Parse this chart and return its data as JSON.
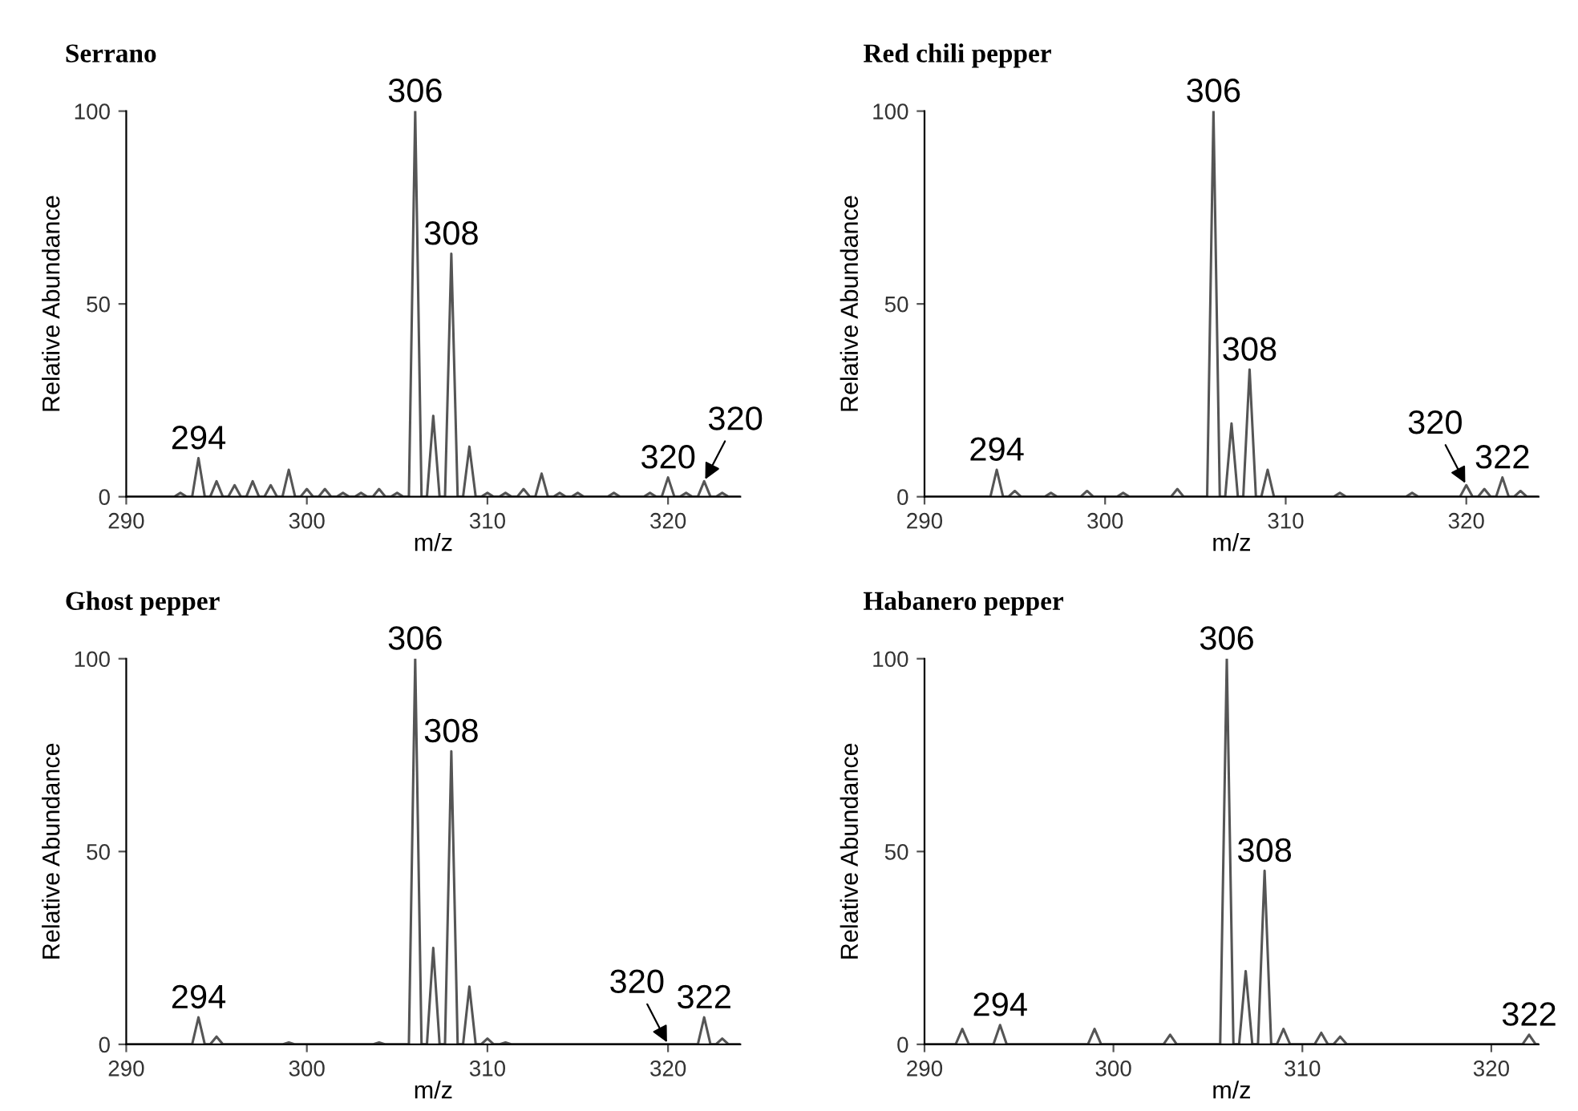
{
  "chart_data": [
    {
      "type": "line",
      "title": "Serrano",
      "xlabel": "m/z",
      "ylabel": "Relative Abundance",
      "xlim": [
        290,
        324
      ],
      "xticks": [
        290,
        300,
        310,
        320
      ],
      "ylim": [
        0,
        100
      ],
      "yticks": [
        0,
        50,
        100
      ],
      "grid": false,
      "legend": false,
      "series": [
        {
          "color": "#555555",
          "x": [
            290,
            292.65,
            293,
            293.35,
            293.65,
            294,
            294.35,
            294.65,
            295,
            295.35,
            295.65,
            296,
            296.35,
            296.65,
            297,
            297.35,
            297.65,
            298,
            298.35,
            298.65,
            299,
            299.35,
            299.65,
            300,
            300.35,
            300.65,
            301,
            301.35,
            301.65,
            302,
            302.35,
            302.65,
            303,
            303.35,
            303.65,
            304,
            304.35,
            304.65,
            305,
            305.35,
            305.65,
            306,
            306.35,
            306.65,
            307,
            307.35,
            307.65,
            308,
            308.35,
            308.65,
            309,
            309.35,
            309.65,
            310,
            310.35,
            310.65,
            311,
            311.35,
            311.65,
            312,
            312.35,
            312.65,
            313,
            313.35,
            313.65,
            314,
            314.35,
            314.65,
            315,
            315.35,
            316.65,
            317,
            317.35,
            318.65,
            319,
            319.35,
            319.65,
            320,
            320.35,
            320.65,
            321,
            321.35,
            321.65,
            322,
            322.35,
            322.65,
            323,
            323.35,
            324
          ],
          "values": [
            0,
            0,
            1,
            0,
            0,
            10,
            0,
            0,
            4,
            0,
            0,
            3,
            0,
            0,
            4,
            0,
            0,
            3,
            0,
            0,
            7,
            0,
            0,
            2,
            0,
            0,
            2,
            0,
            0,
            1,
            0,
            0,
            1,
            0,
            0,
            2,
            0,
            0,
            1,
            0,
            0,
            100,
            0,
            0,
            21,
            0,
            0,
            63,
            0,
            0,
            13,
            0,
            0,
            1,
            0,
            0,
            1,
            0,
            0,
            2,
            0,
            0,
            6,
            0,
            0,
            1,
            0,
            0,
            1,
            0,
            0,
            1,
            0,
            0,
            1,
            0,
            0,
            5,
            0,
            0,
            1,
            0,
            0,
            4,
            0,
            0,
            1,
            0,
            0
          ]
        }
      ],
      "annotations": [
        {
          "text": "294",
          "x": 294,
          "y": 10
        },
        {
          "text": "306",
          "x": 306,
          "y": 100
        },
        {
          "text": "308",
          "x": 308,
          "y": 63
        },
        {
          "text": "320",
          "x": 320,
          "y": 5
        },
        {
          "text": "320",
          "x": 322,
          "y": 4
        }
      ]
    },
    {
      "type": "line",
      "title": "Red chili pepper",
      "xlabel": "m/z",
      "ylabel": "Relative Abundance",
      "xlim": [
        290,
        324
      ],
      "xticks": [
        290,
        300,
        310,
        320
      ],
      "ylim": [
        0,
        100
      ],
      "yticks": [
        0,
        50,
        100
      ],
      "grid": false,
      "legend": false,
      "series": [
        {
          "color": "#555555",
          "x": [
            290,
            293.65,
            294,
            294.35,
            294.65,
            295,
            295.35,
            296.65,
            297,
            297.35,
            298.65,
            299,
            299.35,
            300.65,
            301,
            301.35,
            303.65,
            304,
            304.35,
            305.65,
            306,
            306.35,
            306.65,
            307,
            307.35,
            307.65,
            308,
            308.35,
            308.65,
            309,
            309.35,
            312.65,
            313,
            313.35,
            316.65,
            317,
            317.35,
            319.65,
            320,
            320.35,
            320.65,
            321,
            321.35,
            321.65,
            322,
            322.35,
            322.65,
            323,
            323.35,
            324
          ],
          "values": [
            0,
            0,
            7,
            0,
            0,
            1.5,
            0,
            0,
            1,
            0,
            0,
            1.5,
            0,
            0,
            1,
            0,
            0,
            2,
            0,
            0,
            100,
            0,
            0,
            19,
            0,
            0,
            33,
            0,
            0,
            7,
            0,
            0,
            1,
            0,
            0,
            1,
            0,
            0,
            3,
            0,
            0,
            2,
            0,
            0,
            5,
            0,
            0,
            1.5,
            0,
            0
          ]
        }
      ],
      "annotations": [
        {
          "text": "294",
          "x": 294,
          "y": 7
        },
        {
          "text": "306",
          "x": 306,
          "y": 100
        },
        {
          "text": "308",
          "x": 308,
          "y": 33
        },
        {
          "text": "320",
          "x": 320,
          "y": 3
        },
        {
          "text": "322",
          "x": 322,
          "y": 5
        }
      ]
    },
    {
      "type": "line",
      "title": "Ghost pepper",
      "xlabel": "m/z",
      "ylabel": "Relative Abundance",
      "xlim": [
        290,
        324
      ],
      "xticks": [
        290,
        300,
        310,
        320
      ],
      "ylim": [
        0,
        100
      ],
      "yticks": [
        0,
        50,
        100
      ],
      "grid": false,
      "legend": false,
      "series": [
        {
          "color": "#555555",
          "x": [
            290,
            293.65,
            294,
            294.35,
            294.65,
            295,
            295.35,
            298.65,
            299,
            299.35,
            303.65,
            304,
            304.35,
            305.65,
            306,
            306.35,
            306.65,
            307,
            307.35,
            307.65,
            308,
            308.35,
            308.65,
            309,
            309.35,
            309.65,
            310,
            310.35,
            310.65,
            311,
            311.35,
            321.65,
            322,
            322.35,
            322.65,
            323,
            323.35,
            324
          ],
          "values": [
            0,
            0,
            7,
            0,
            0,
            2,
            0,
            0,
            0.5,
            0,
            0,
            0.5,
            0,
            0,
            100,
            0,
            0,
            25,
            0,
            0,
            76,
            0,
            0,
            15,
            0,
            0,
            1.5,
            0,
            0,
            0.5,
            0,
            0,
            7,
            0,
            0,
            1.5,
            0,
            0
          ]
        }
      ],
      "annotations": [
        {
          "text": "294",
          "x": 294,
          "y": 7
        },
        {
          "text": "306",
          "x": 306,
          "y": 100
        },
        {
          "text": "308",
          "x": 308,
          "y": 76
        },
        {
          "text": "320",
          "x": 320,
          "y": 0
        },
        {
          "text": "322",
          "x": 322,
          "y": 7
        }
      ]
    },
    {
      "type": "line",
      "title": "Habanero pepper",
      "xlabel": "m/z",
      "ylabel": "Relative Abundance",
      "xlim": [
        290,
        322.5
      ],
      "xticks": [
        290,
        300,
        310,
        320
      ],
      "ylim": [
        0,
        100
      ],
      "yticks": [
        0,
        50,
        100
      ],
      "grid": false,
      "legend": false,
      "series": [
        {
          "color": "#555555",
          "x": [
            290,
            291.65,
            292,
            292.35,
            293.65,
            294,
            294.35,
            298.65,
            299,
            299.35,
            302.65,
            303,
            303.35,
            305.65,
            306,
            306.35,
            306.65,
            307,
            307.35,
            307.65,
            308,
            308.35,
            308.65,
            309,
            309.35,
            310.65,
            311,
            311.35,
            311.65,
            312,
            312.35,
            321.65,
            322,
            322.35,
            322.5
          ],
          "values": [
            0,
            0,
            4,
            0,
            0,
            5,
            0,
            0,
            4,
            0,
            0,
            2.5,
            0,
            0,
            100,
            0,
            0,
            19,
            0,
            0,
            45,
            0,
            0,
            4,
            0,
            0,
            3,
            0,
            0,
            2,
            0,
            0,
            2.5,
            0,
            0
          ]
        }
      ],
      "annotations": [
        {
          "text": "294",
          "x": 294,
          "y": 5
        },
        {
          "text": "306",
          "x": 306,
          "y": 100
        },
        {
          "text": "308",
          "x": 308,
          "y": 45
        },
        {
          "text": "322",
          "x": 322,
          "y": 2.5
        }
      ]
    }
  ]
}
